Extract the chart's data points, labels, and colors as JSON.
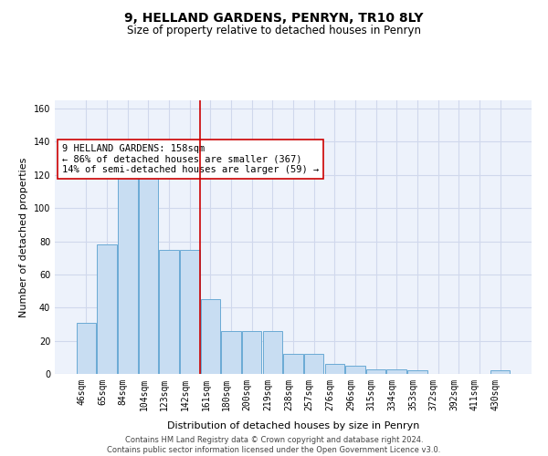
{
  "title": "9, HELLAND GARDENS, PENRYN, TR10 8LY",
  "subtitle": "Size of property relative to detached houses in Penryn",
  "xlabel": "Distribution of detached houses by size in Penryn",
  "ylabel": "Number of detached properties",
  "categories": [
    "46sqm",
    "65sqm",
    "84sqm",
    "104sqm",
    "123sqm",
    "142sqm",
    "161sqm",
    "180sqm",
    "200sqm",
    "219sqm",
    "238sqm",
    "257sqm",
    "276sqm",
    "296sqm",
    "315sqm",
    "334sqm",
    "353sqm",
    "372sqm",
    "392sqm",
    "411sqm",
    "430sqm"
  ],
  "values": [
    31,
    78,
    121,
    121,
    75,
    75,
    45,
    26,
    26,
    26,
    12,
    12,
    6,
    5,
    3,
    3,
    2,
    0,
    0,
    0,
    2
  ],
  "bar_color": "#c8ddf2",
  "bar_edge_color": "#6aaad4",
  "vline_color": "#cc0000",
  "annotation_text": "9 HELLAND GARDENS: 158sqm\n← 86% of detached houses are smaller (367)\n14% of semi-detached houses are larger (59) →",
  "annotation_box_color": "#ffffff",
  "annotation_box_edge": "#cc0000",
  "ylim": [
    0,
    165
  ],
  "yticks": [
    0,
    20,
    40,
    60,
    80,
    100,
    120,
    140,
    160
  ],
  "grid_color": "#d0d8ec",
  "background_color": "#edf2fb",
  "footer": "Contains HM Land Registry data © Crown copyright and database right 2024.\nContains public sector information licensed under the Open Government Licence v3.0.",
  "title_fontsize": 10,
  "subtitle_fontsize": 8.5,
  "ylabel_fontsize": 8,
  "xlabel_fontsize": 8,
  "tick_fontsize": 7,
  "annotation_fontsize": 7.5,
  "footer_fontsize": 6
}
